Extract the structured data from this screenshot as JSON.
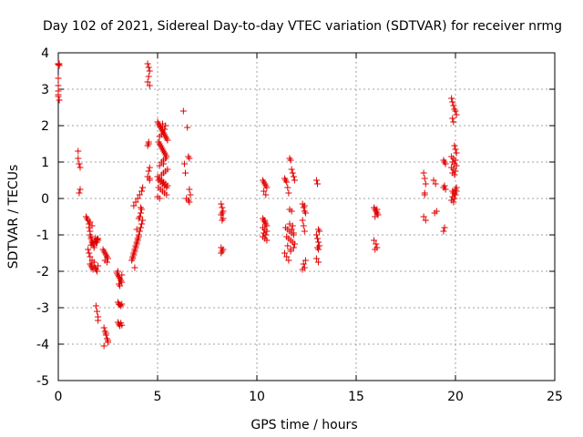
{
  "chart_data": {
    "type": "scatter",
    "title": "Day 102 of 2021, Sidereal Day-to-day VTEC variation (SDTVAR) for receiver nrmg",
    "xlabel": "GPS time / hours",
    "ylabel": "SDTVAR / TECUs",
    "xlim": [
      0,
      25
    ],
    "ylim": [
      -5,
      4
    ],
    "xticks": [
      "0",
      "5",
      "10",
      "15",
      "20",
      "25"
    ],
    "yticks": [
      "-5",
      "-4",
      "-3",
      "-2",
      "-1",
      "0",
      "1",
      "2",
      "3",
      "4"
    ],
    "grid": true,
    "marker": "plus",
    "color": "#e00000",
    "series": [
      {
        "name": "SDTVAR",
        "x": [
          0.0,
          0.0,
          0.0,
          0.0,
          0.0,
          0.0,
          0.0,
          0.05,
          0.05,
          0.05,
          1.0,
          1.0,
          1.05,
          1.1,
          1.1,
          1.05,
          1.4,
          1.45,
          1.5,
          1.55,
          1.55,
          1.6,
          1.6,
          1.65,
          1.65,
          1.7,
          1.7,
          1.75,
          1.8,
          1.8,
          1.85,
          1.9,
          1.95,
          2.0,
          1.6,
          1.65,
          1.7,
          1.75,
          1.8,
          1.85,
          1.9,
          1.95,
          2.0,
          1.5,
          1.55,
          1.6,
          1.7,
          1.8,
          1.9,
          2.0,
          1.95,
          1.85,
          1.75,
          1.65,
          1.6,
          1.7,
          1.9,
          1.95,
          2.0,
          2.0,
          2.25,
          2.3,
          2.35,
          2.4,
          2.45,
          2.5,
          2.3,
          2.35,
          2.4,
          2.45,
          2.5,
          2.3,
          2.4,
          2.5,
          2.35,
          2.45,
          2.95,
          3.0,
          3.05,
          3.1,
          3.15,
          3.2,
          3.0,
          3.05,
          3.1,
          3.15,
          3.2,
          3.0,
          3.05,
          3.1,
          3.15,
          3.2,
          3.0,
          3.1,
          3.2,
          3.05,
          3.15,
          3.7,
          3.75,
          3.8,
          3.85,
          3.9,
          3.95,
          4.0,
          4.05,
          4.1,
          4.15,
          4.2,
          4.25,
          3.75,
          3.8,
          3.85,
          3.9,
          3.95,
          4.0,
          4.05,
          4.1,
          4.15,
          4.2,
          3.8,
          3.9,
          4.0,
          4.1,
          4.2,
          4.25,
          3.85,
          3.95,
          4.05,
          4.15,
          4.5,
          4.55,
          4.6,
          4.55,
          4.5,
          4.6,
          4.55,
          4.5,
          4.6,
          4.55,
          4.5,
          4.6,
          4.55,
          4.6,
          5.0,
          5.05,
          5.1,
          5.15,
          5.2,
          5.25,
          5.3,
          5.35,
          5.4,
          5.45,
          5.5,
          5.05,
          5.1,
          5.15,
          5.2,
          5.25,
          5.3,
          5.35,
          5.4,
          5.45,
          5.0,
          5.1,
          5.2,
          5.3,
          5.4,
          5.5,
          5.05,
          5.15,
          5.25,
          5.35,
          5.45,
          5.0,
          5.1,
          5.2,
          5.3,
          5.4,
          5.5,
          5.05,
          5.15,
          5.25,
          5.35,
          5.45,
          5.1,
          5.2,
          5.3,
          5.4,
          5.15,
          5.25,
          5.35,
          5.2,
          5.3,
          5.4,
          5.1,
          5.3,
          6.3,
          6.35,
          6.4,
          6.5,
          6.55,
          6.6,
          6.6,
          6.65,
          6.55,
          6.6,
          6.45,
          8.2,
          8.25,
          8.3,
          8.25,
          8.2,
          8.3,
          8.25,
          8.2,
          8.3,
          8.25,
          8.2,
          10.3,
          10.35,
          10.4,
          10.45,
          10.5,
          10.3,
          10.35,
          10.4,
          10.45,
          10.5,
          10.3,
          10.4,
          10.5,
          10.35,
          10.45,
          10.3,
          10.4,
          10.5,
          10.35,
          10.45,
          10.4,
          11.4,
          11.45,
          11.5,
          11.55,
          11.6,
          11.65,
          11.7,
          11.75,
          11.8,
          11.85,
          11.9,
          11.45,
          11.55,
          11.65,
          11.75,
          11.85,
          11.5,
          11.6,
          11.7,
          11.8,
          11.9,
          11.55,
          11.65,
          11.75,
          11.85,
          11.4,
          11.5,
          11.6,
          11.7,
          11.8,
          11.65,
          11.75,
          11.85,
          11.7,
          12.3,
          12.35,
          12.4,
          12.45,
          12.3,
          12.35,
          12.4,
          12.45,
          12.35,
          12.4,
          12.3,
          12.4,
          13.0,
          13.05,
          13.1,
          13.15,
          13.0,
          13.05,
          13.1,
          13.15,
          13.05,
          13.1,
          13.0,
          13.1,
          15.9,
          15.95,
          16.0,
          16.05,
          16.1,
          15.95,
          16.0,
          16.05,
          16.1,
          15.9,
          16.0,
          16.05,
          15.95,
          16.05,
          18.4,
          18.45,
          18.5,
          18.45,
          18.4,
          18.5,
          18.45,
          18.9,
          19.0,
          19.05,
          18.95,
          19.4,
          19.45,
          19.5,
          19.45,
          19.4,
          19.5,
          19.45,
          19.4,
          19.8,
          19.85,
          19.9,
          19.95,
          20.0,
          20.05,
          19.85,
          19.9,
          19.95,
          20.0,
          20.05,
          19.8,
          19.9,
          20.0,
          19.85,
          19.95,
          20.05,
          19.8,
          19.9,
          20.0,
          19.85,
          19.95,
          20.05,
          19.9,
          20.0,
          19.85,
          19.95,
          19.8,
          19.9,
          20.0,
          20.05,
          19.85,
          19.95
        ],
        "y": [
          3.7,
          3.68,
          3.3,
          3.1,
          2.95,
          2.85,
          2.8,
          2.7,
          3.7,
          3.65,
          1.3,
          1.1,
          0.95,
          0.85,
          0.25,
          0.15,
          -0.5,
          -0.55,
          -0.6,
          -0.7,
          -0.8,
          -0.9,
          -1.0,
          -1.05,
          -1.1,
          -1.15,
          -1.2,
          -1.25,
          -1.3,
          -1.35,
          -1.1,
          -1.15,
          -1.2,
          -1.15,
          -1.8,
          -1.85,
          -1.9,
          -1.95,
          -1.85,
          -1.9,
          -1.95,
          -2.0,
          -1.85,
          -1.4,
          -1.5,
          -1.6,
          -1.7,
          -1.75,
          -1.2,
          -1.1,
          -1.12,
          -1.18,
          -1.22,
          -1.28,
          -0.65,
          -0.75,
          -2.95,
          -3.1,
          -3.25,
          -3.35,
          -1.4,
          -1.45,
          -1.5,
          -1.55,
          -1.6,
          -1.65,
          -3.55,
          -3.65,
          -3.75,
          -3.85,
          -3.95,
          -4.05,
          -3.7,
          -3.9,
          -1.7,
          -1.75,
          -2.05,
          -2.1,
          -2.15,
          -2.2,
          -2.25,
          -2.3,
          -2.85,
          -2.9,
          -2.92,
          -2.95,
          -2.9,
          -3.4,
          -3.45,
          -3.5,
          -3.42,
          -3.48,
          -2.0,
          -2.4,
          -2.1,
          -2.35,
          -2.25,
          -1.7,
          -1.6,
          -1.5,
          -1.4,
          -1.3,
          -1.2,
          -1.1,
          -1.0,
          -0.9,
          -0.8,
          -0.7,
          -0.6,
          -1.65,
          -1.55,
          -1.45,
          -1.35,
          -1.25,
          -1.15,
          -1.05,
          -0.5,
          -0.4,
          -0.3,
          -0.2,
          -0.1,
          0.0,
          0.1,
          0.2,
          0.3,
          -1.9,
          -0.85,
          -0.55,
          -0.25,
          3.7,
          3.6,
          3.5,
          3.35,
          3.2,
          3.1,
          1.5,
          1.45,
          0.85,
          0.75,
          0.6,
          0.5,
          1.55,
          0.55,
          2.1,
          2.05,
          2.0,
          1.95,
          1.9,
          1.85,
          1.8,
          1.75,
          1.7,
          1.65,
          1.6,
          1.55,
          1.5,
          1.45,
          1.4,
          1.35,
          1.3,
          1.25,
          1.2,
          1.15,
          0.6,
          0.55,
          0.5,
          0.45,
          0.4,
          0.35,
          0.3,
          0.25,
          0.2,
          0.15,
          0.1,
          0.05,
          0.0,
          0.65,
          0.7,
          0.75,
          0.8,
          0.5,
          0.45,
          0.4,
          0.35,
          0.3,
          1.7,
          1.75,
          1.8,
          2.0,
          1.95,
          2.05,
          1.9,
          1.0,
          1.05,
          1.1,
          0.9,
          0.95,
          2.4,
          0.95,
          0.7,
          1.95,
          1.15,
          1.1,
          0.25,
          0.1,
          -0.05,
          -0.1,
          0.0,
          -0.15,
          -0.25,
          -0.35,
          -0.4,
          -0.45,
          -0.55,
          -0.6,
          -1.35,
          -1.4,
          -1.45,
          -1.5,
          0.5,
          0.45,
          0.4,
          0.35,
          0.3,
          -0.55,
          -0.6,
          -0.65,
          -0.7,
          -0.75,
          -0.8,
          -0.85,
          -0.9,
          -0.95,
          -1.0,
          -1.05,
          -1.1,
          -1.15,
          0.2,
          0.1,
          -0.6,
          0.55,
          0.5,
          0.45,
          0.3,
          0.15,
          1.1,
          1.05,
          0.8,
          0.7,
          0.6,
          0.5,
          -0.8,
          -0.85,
          -0.9,
          -0.95,
          -1.0,
          -1.05,
          -1.1,
          -1.15,
          -1.2,
          -1.25,
          -1.3,
          -0.3,
          -0.35,
          -0.95,
          -1.5,
          -1.6,
          -1.7,
          -1.4,
          -0.75,
          -0.7,
          -0.85,
          -1.35,
          -1.45,
          -0.15,
          -0.25,
          -0.35,
          -0.4,
          -0.6,
          -0.75,
          -0.9,
          -1.7,
          -1.8,
          -1.9,
          -1.95,
          -0.2,
          0.5,
          0.4,
          -0.85,
          -0.9,
          -1.0,
          -1.1,
          -1.2,
          -1.3,
          -1.35,
          -1.4,
          -1.65,
          -1.75,
          -0.25,
          -0.3,
          -0.35,
          -0.4,
          -0.45,
          -0.5,
          -0.35,
          -0.4,
          -0.45,
          -1.15,
          -1.25,
          -1.35,
          -1.4,
          -0.3,
          0.7,
          0.55,
          0.4,
          0.15,
          -0.5,
          -0.6,
          0.1,
          0.5,
          0.4,
          -0.35,
          -0.4,
          1.05,
          1.0,
          0.95,
          0.35,
          0.3,
          0.25,
          -0.8,
          -0.9,
          2.75,
          2.65,
          2.55,
          2.45,
          2.4,
          2.3,
          2.2,
          2.1,
          1.45,
          1.35,
          1.25,
          1.15,
          1.1,
          1.05,
          1.0,
          0.95,
          0.9,
          0.85,
          0.8,
          0.75,
          0.7,
          0.65,
          0.2,
          0.15,
          0.1,
          0.05,
          0.0,
          -0.05,
          -0.1,
          0.25,
          0.3,
          0.2,
          0.15
        ],
        "extra_x": [],
        "extra_y": []
      }
    ]
  }
}
